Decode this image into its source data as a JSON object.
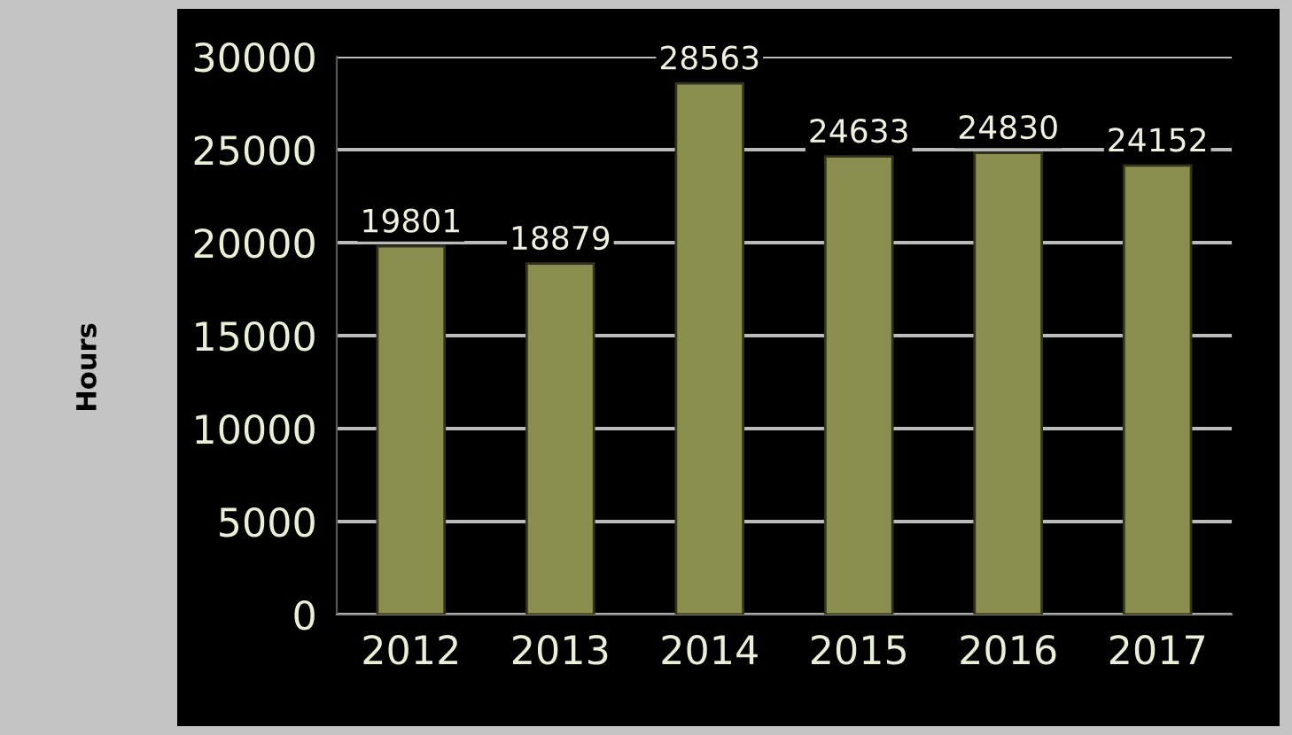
{
  "chart_data": {
    "type": "bar",
    "ylabel": "Hours",
    "categories": [
      "2012",
      "2013",
      "2014",
      "2015",
      "2016",
      "2017"
    ],
    "values": [
      19801,
      18879,
      28563,
      24633,
      24830,
      24152
    ],
    "color": "#8a8f4f",
    "ylim": [
      0,
      30000
    ],
    "yticks": [
      0,
      5000,
      10000,
      15000,
      20000,
      25000,
      30000
    ],
    "grid": "y",
    "data_labels": true
  }
}
